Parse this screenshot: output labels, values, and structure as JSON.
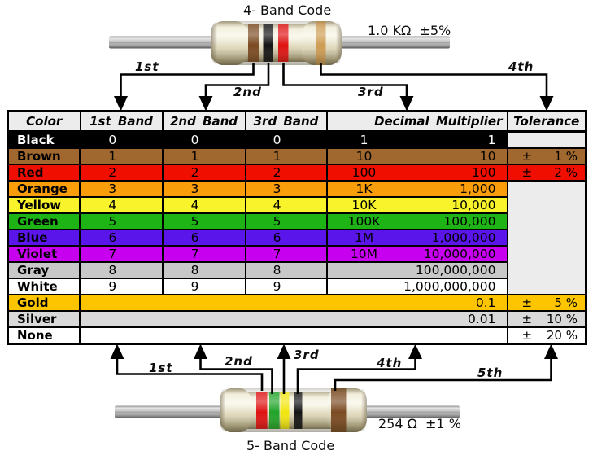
{
  "top_code": {
    "title": "4- Band Code",
    "value_label": "1.0 KΩ  ±5%",
    "bands": [
      "brown",
      "black",
      "red",
      "gold"
    ],
    "arrow_labels": {
      "a1": "1st",
      "a2": "2nd",
      "a3": "3rd",
      "a4": "4th"
    }
  },
  "bottom_code": {
    "title": "5- Band Code",
    "value_label": "254 Ω  ±1 %",
    "bands": [
      "red",
      "green",
      "yellow",
      "black",
      "brown"
    ],
    "arrow_labels": {
      "a1": "1st",
      "a2": "2nd",
      "a3": "3rd",
      "a4": "4th",
      "a5": "5th"
    }
  },
  "band_paint": {
    "brown": "#7A4A21",
    "black": "#131313",
    "red": "#DF1111",
    "gold": "#CE9C52",
    "green": "#1FA327",
    "yellow": "#F2E60D",
    "body_light": "#F7F3E1",
    "body_mid": "#DDD6B8",
    "body_dark": "#A89E7C",
    "wire_light": "#EFEFEF",
    "wire_mid": "#ABABAB",
    "wire_dark": "#5F5F5F"
  },
  "table": {
    "headers": [
      "Color",
      "1st Band",
      "2nd Band",
      "3rd Band",
      "Decimal Multiplier",
      "Tolerance"
    ],
    "tolerance_sign": "±",
    "empty_cell_color": "#ECECEC",
    "rows": [
      {
        "name": "Black",
        "bg": "#000000",
        "fg": "#FFFFFF",
        "digits": [
          "0",
          "0",
          "0"
        ],
        "mult_code": "1",
        "mult_value": "1",
        "tol": null,
        "tol_cell": "empty"
      },
      {
        "name": "Brown",
        "bg": "#A0682F",
        "fg": "#000000",
        "digits": [
          "1",
          "1",
          "1"
        ],
        "mult_code": "10",
        "mult_value": "10",
        "tol": "1 %",
        "tol_cell": "normal"
      },
      {
        "name": "Red",
        "bg": "#EF0E00",
        "fg": "#000000",
        "digits": [
          "2",
          "2",
          "2"
        ],
        "mult_code": "100",
        "mult_value": "100",
        "tol": "2 %",
        "tol_cell": "normal"
      },
      {
        "name": "Orange",
        "bg": "#FA9D0A",
        "fg": "#000000",
        "digits": [
          "3",
          "3",
          "3"
        ],
        "mult_code": "1K",
        "mult_value": "1,000",
        "tol": null,
        "tol_cell": "merged"
      },
      {
        "name": "Yellow",
        "bg": "#F9F32B",
        "fg": "#000000",
        "digits": [
          "4",
          "4",
          "4"
        ],
        "mult_code": "10K",
        "mult_value": "10,000",
        "tol": null,
        "tol_cell": "none"
      },
      {
        "name": "Green",
        "bg": "#1FB415",
        "fg": "#000000",
        "digits": [
          "5",
          "5",
          "5"
        ],
        "mult_code": "100K",
        "mult_value": "100,000",
        "tol": null,
        "tol_cell": "none"
      },
      {
        "name": "Blue",
        "bg": "#5A16EA",
        "fg": "#000000",
        "digits": [
          "6",
          "6",
          "6"
        ],
        "mult_code": "1M",
        "mult_value": "1,000,000",
        "tol": null,
        "tol_cell": "none"
      },
      {
        "name": "Violet",
        "bg": "#C800F0",
        "fg": "#000000",
        "digits": [
          "7",
          "7",
          "7"
        ],
        "mult_code": "10M",
        "mult_value": "10,000,000",
        "tol": null,
        "tol_cell": "none"
      },
      {
        "name": "Gray",
        "bg": "#C8C8C8",
        "fg": "#000000",
        "digits": [
          "8",
          "8",
          "8"
        ],
        "mult_code": "",
        "mult_value": "100,000,000",
        "tol": null,
        "tol_cell": "none"
      },
      {
        "name": "White",
        "bg": "#FFFFFF",
        "fg": "#000000",
        "digits": [
          "9",
          "9",
          "9"
        ],
        "mult_code": "",
        "mult_value": "1,000,000,000",
        "tol": null,
        "tol_cell": "none"
      },
      {
        "name": "Gold",
        "bg": "#FDC500",
        "fg": "#000000",
        "merged_value": "0.1",
        "tol": "5 %",
        "tol_cell": "normal"
      },
      {
        "name": "Silver",
        "bg": "#D9D9D9",
        "fg": "#000000",
        "merged_value": "0.01",
        "tol": "10 %",
        "tol_cell": "normal"
      },
      {
        "name": "None",
        "bg": "#FFFFFF",
        "fg": "#000000",
        "merged_value": "",
        "tol": "20 %",
        "tol_cell": "normal"
      }
    ]
  }
}
